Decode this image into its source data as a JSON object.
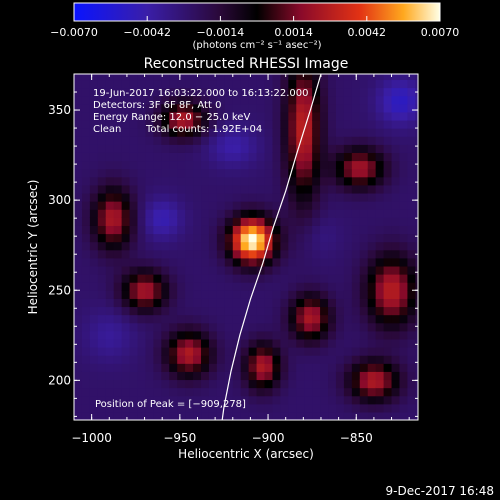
{
  "chart_data": {
    "type": "heatmap",
    "title": "Reconstructed RHESSI Image",
    "xlabel": "Heliocentric X (arcsec)",
    "ylabel": "Heliocentric Y (arcsec)",
    "xlim": [
      -1010,
      -815
    ],
    "ylim": [
      178,
      370
    ],
    "xticks": [
      -1000,
      -950,
      -900,
      -850
    ],
    "xtick_labels": [
      "−1000",
      "−950",
      "−900",
      "−850"
    ],
    "yticks": [
      200,
      250,
      300,
      350
    ],
    "ytick_labels": [
      "200",
      "250",
      "300",
      "350"
    ],
    "colorbar": {
      "min": -0.007,
      "max": 0.007,
      "ticks": [
        -0.007,
        -0.0042,
        -0.0014,
        0.0014,
        0.0042,
        0.007
      ],
      "tick_labels": [
        "−0.0070",
        "−0.0042",
        "−0.0014",
        "0.0014",
        "0.0042",
        "0.0070"
      ],
      "unit_label": "(photons cm⁻² s⁻¹ asec⁻²)"
    },
    "annotations": [
      "19-Jun-2017 16:03:22.000 to 16:13:22.000",
      "Detectors: 3F 6F 8F, Att 0",
      "Energy Range: 12.0 − 25.0 keV",
      "Clean",
      "Total counts: 1.92E+04"
    ],
    "peak_label": "Position of Peak = [−909,278]",
    "peak": {
      "x": -909,
      "y": 278,
      "value": 0.007
    },
    "sources": [
      {
        "x": -909,
        "y": 278,
        "sx": 9,
        "sy": 9,
        "value": 0.0072
      },
      {
        "x": -880,
        "y": 340,
        "sx": 7,
        "sy": 28,
        "value": 0.003
      },
      {
        "x": -948,
        "y": 345,
        "sx": 9,
        "sy": 7,
        "value": 0.0026
      },
      {
        "x": -988,
        "y": 290,
        "sx": 8,
        "sy": 12,
        "value": 0.0025
      },
      {
        "x": -970,
        "y": 250,
        "sx": 9,
        "sy": 8,
        "value": 0.0024
      },
      {
        "x": -945,
        "y": 215,
        "sx": 9,
        "sy": 9,
        "value": 0.0026
      },
      {
        "x": -903,
        "y": 208,
        "sx": 7,
        "sy": 9,
        "value": 0.0026
      },
      {
        "x": -876,
        "y": 235,
        "sx": 8,
        "sy": 9,
        "value": 0.0025
      },
      {
        "x": -830,
        "y": 250,
        "sx": 10,
        "sy": 14,
        "value": 0.0028
      },
      {
        "x": -848,
        "y": 318,
        "sx": 10,
        "sy": 8,
        "value": 0.0023
      },
      {
        "x": -840,
        "y": 200,
        "sx": 10,
        "sy": 8,
        "value": 0.0026
      },
      {
        "x": -960,
        "y": 290,
        "sx": 8,
        "sy": 8,
        "value": -0.0045
      },
      {
        "x": -920,
        "y": 330,
        "sx": 10,
        "sy": 8,
        "value": -0.0042
      },
      {
        "x": -825,
        "y": 355,
        "sx": 9,
        "sy": 9,
        "value": -0.005
      },
      {
        "x": -990,
        "y": 225,
        "sx": 10,
        "sy": 10,
        "value": -0.0038
      },
      {
        "x": -870,
        "y": 280,
        "sx": 8,
        "sy": 8,
        "value": -0.0032
      }
    ],
    "limb": [
      [
        -870,
        370
      ],
      [
        -876,
        350
      ],
      [
        -884,
        325
      ],
      [
        -890,
        305
      ],
      [
        -897,
        285
      ],
      [
        -903,
        265
      ],
      [
        -910,
        245
      ],
      [
        -916,
        225
      ],
      [
        -921,
        205
      ],
      [
        -925,
        185
      ],
      [
        -926,
        178
      ]
    ],
    "colors": {
      "background": "#000000",
      "text": "#ffffff",
      "limb": "#ffffff"
    }
  },
  "footer": {
    "date": "9-Dec-2017 16:48"
  }
}
